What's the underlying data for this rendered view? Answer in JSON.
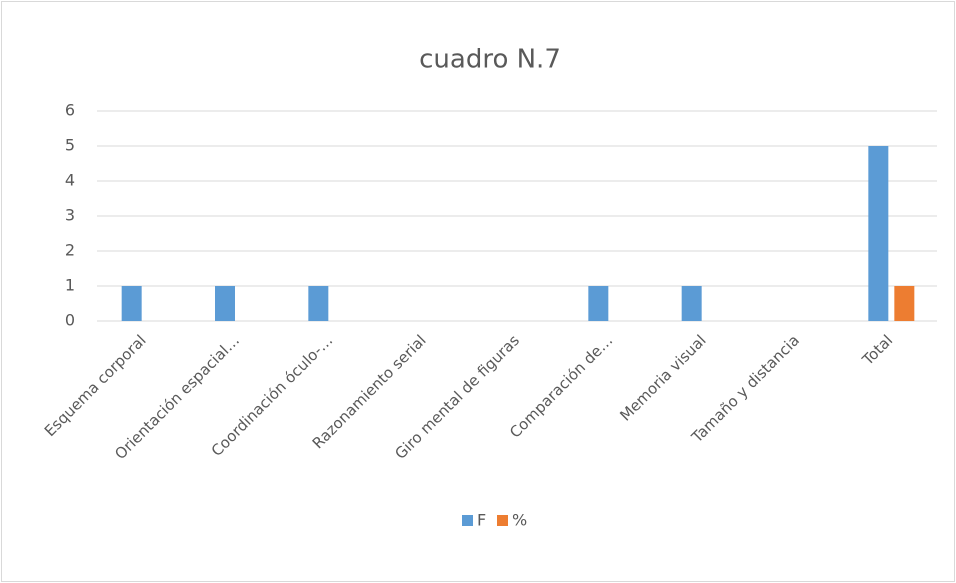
{
  "chart_data": {
    "type": "bar",
    "title": "cuadro N.7",
    "categories": [
      "Esquema corporal",
      "Orientación espacial…",
      "Coordinación óculo-…",
      "Razonamiento serial",
      "Giro mental de figuras",
      "Comparación de…",
      "Memoria visual",
      "Tamaño y distancia",
      "Total"
    ],
    "series": [
      {
        "name": "F",
        "color": "#5b9bd5",
        "values": [
          1,
          1,
          1,
          0,
          0,
          1,
          1,
          0,
          5
        ]
      },
      {
        "name": "%",
        "color": "#ed7d31",
        "values": [
          0,
          0,
          0,
          0,
          0,
          0,
          0,
          0,
          1
        ]
      }
    ],
    "ylim": [
      0,
      6
    ],
    "yticks": [
      0,
      1,
      2,
      3,
      4,
      5,
      6
    ],
    "grid": true,
    "legend": "bottom"
  }
}
